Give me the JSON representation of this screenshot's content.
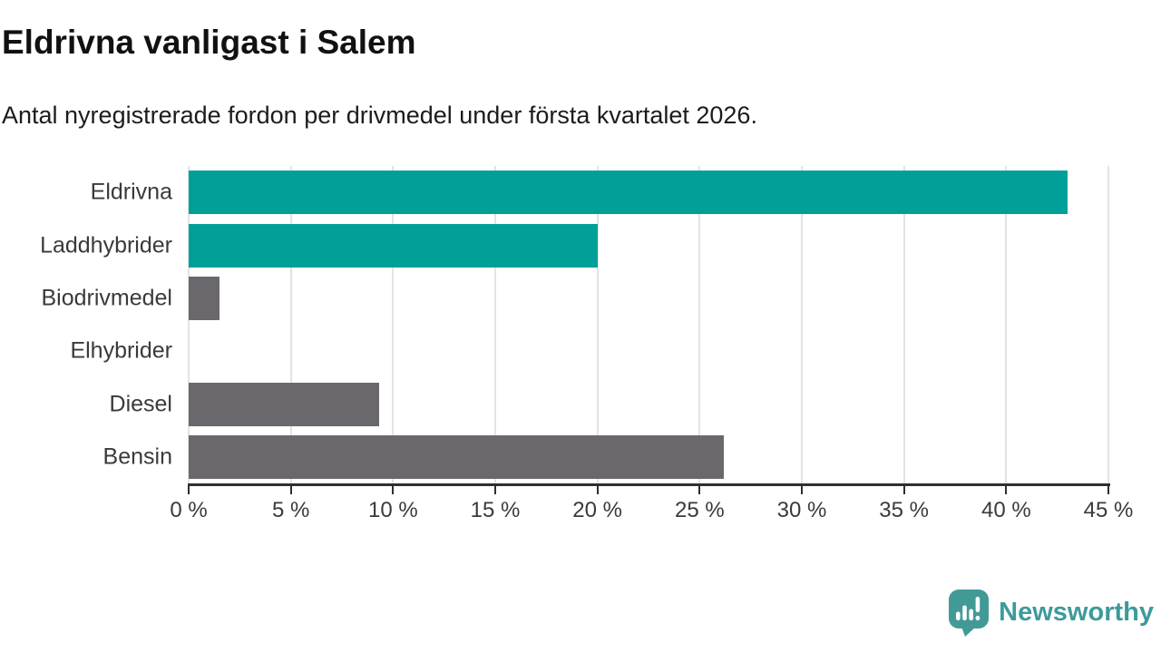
{
  "header": {
    "title": "Eldrivna vanligast i Salem",
    "subtitle": "Antal nyregistrerade fordon per drivmedel under första kvartalet 2026."
  },
  "chart_data": {
    "type": "bar",
    "orientation": "horizontal",
    "title": "Eldrivna vanligast i Salem",
    "subtitle": "Antal nyregistrerade fordon per drivmedel under första kvartalet 2026.",
    "categories": [
      "Eldrivna",
      "Laddhybrider",
      "Biodrivmedel",
      "Elhybrider",
      "Diesel",
      "Bensin"
    ],
    "values": [
      43,
      20,
      1.5,
      0,
      9.3,
      26.2
    ],
    "unit": "%",
    "bar_colors": [
      "#00a099",
      "#00a099",
      "#6b686d",
      "#6b686d",
      "#6b686d",
      "#6b686d"
    ],
    "xlim": [
      0,
      45
    ],
    "x_tick_step": 5,
    "x_tick_labels": [
      "0 %",
      "5 %",
      "10 %",
      "15 %",
      "20 %",
      "25 %",
      "30 %",
      "35 %",
      "40 %",
      "45 %"
    ],
    "grid": true,
    "legend": "none"
  },
  "colors": {
    "accent_teal": "#00a099",
    "neutral_gray": "#6b686d",
    "gridline": "#e3e3e3",
    "axis": "#2f2f2f",
    "logo_teal": "#3e9a9b"
  },
  "footer": {
    "brand": "Newsworthy"
  },
  "icons": {
    "logo_icon": "newsworthy-bubble-chart-icon"
  }
}
